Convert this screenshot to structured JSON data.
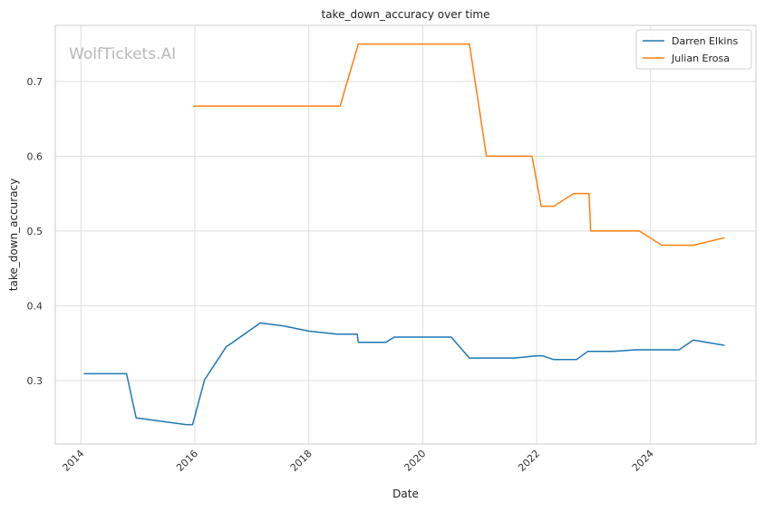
{
  "chart_data": {
    "type": "line",
    "title": "take_down_accuracy over time",
    "xlabel": "Date",
    "ylabel": "take_down_accuracy",
    "watermark": "WolfTickets.AI",
    "xlim": [
      2013.55,
      2025.85
    ],
    "ylim": [
      0.215,
      0.775
    ],
    "x_ticks": [
      2014,
      2016,
      2018,
      2020,
      2022,
      2024
    ],
    "y_ticks": [
      0.3,
      0.4,
      0.5,
      0.6,
      0.7
    ],
    "grid": true,
    "legend_position": "top-right",
    "series": [
      {
        "name": "Darren Elkins",
        "color": "#1f77b4",
        "points": [
          [
            2014.05,
            0.309
          ],
          [
            2014.8,
            0.309
          ],
          [
            2014.97,
            0.25
          ],
          [
            2015.85,
            0.241
          ],
          [
            2015.96,
            0.241
          ],
          [
            2016.17,
            0.301
          ],
          [
            2016.55,
            0.345
          ],
          [
            2017.15,
            0.377
          ],
          [
            2017.55,
            0.373
          ],
          [
            2018.0,
            0.366
          ],
          [
            2018.5,
            0.362
          ],
          [
            2018.85,
            0.362
          ],
          [
            2018.87,
            0.351
          ],
          [
            2019.35,
            0.351
          ],
          [
            2019.5,
            0.358
          ],
          [
            2020.5,
            0.358
          ],
          [
            2020.82,
            0.33
          ],
          [
            2021.0,
            0.33
          ],
          [
            2021.6,
            0.33
          ],
          [
            2021.75,
            0.331
          ],
          [
            2022.0,
            0.333
          ],
          [
            2022.1,
            0.333
          ],
          [
            2022.3,
            0.328
          ],
          [
            2022.7,
            0.328
          ],
          [
            2022.9,
            0.339
          ],
          [
            2023.35,
            0.339
          ],
          [
            2023.75,
            0.341
          ],
          [
            2024.5,
            0.341
          ],
          [
            2024.75,
            0.354
          ],
          [
            2025.3,
            0.347
          ]
        ]
      },
      {
        "name": "Julian Erosa",
        "color": "#ff7f0e",
        "points": [
          [
            2015.97,
            0.667
          ],
          [
            2018.55,
            0.667
          ],
          [
            2018.87,
            0.75
          ],
          [
            2020.82,
            0.75
          ],
          [
            2021.12,
            0.6
          ],
          [
            2021.92,
            0.6
          ],
          [
            2022.08,
            0.533
          ],
          [
            2022.3,
            0.533
          ],
          [
            2022.65,
            0.55
          ],
          [
            2022.92,
            0.55
          ],
          [
            2022.95,
            0.5
          ],
          [
            2023.8,
            0.5
          ],
          [
            2024.2,
            0.481
          ],
          [
            2024.75,
            0.481
          ],
          [
            2025.3,
            0.491
          ]
        ]
      }
    ]
  }
}
